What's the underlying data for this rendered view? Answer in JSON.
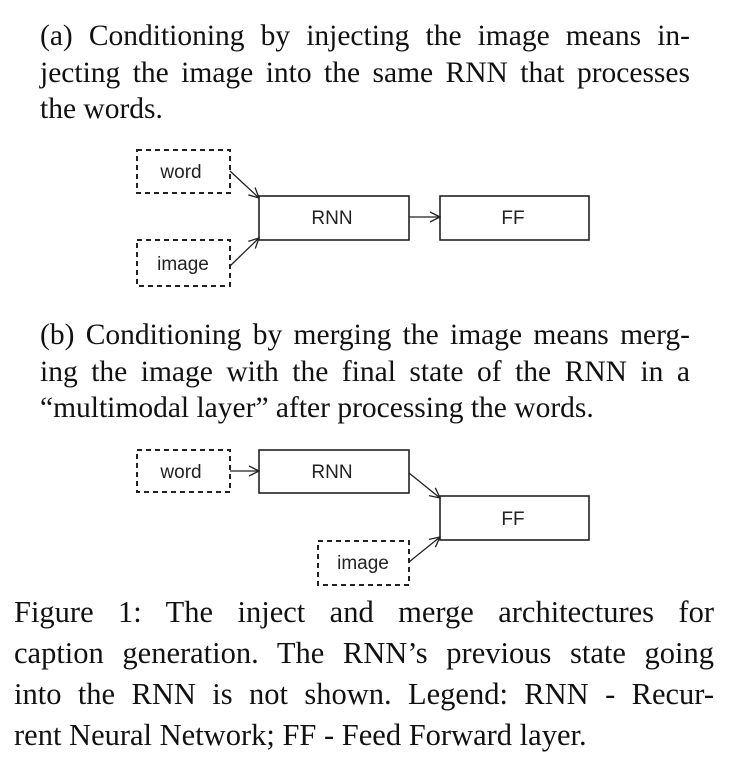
{
  "paragraph_a": {
    "lines": [
      "(a)  Conditioning by injecting the image means in-",
      "jecting the image into the same RNN that processes",
      "the words."
    ]
  },
  "diagram_a": {
    "nodes": {
      "word": "word",
      "image": "image",
      "rnn": "RNN",
      "ff": "FF"
    }
  },
  "paragraph_b": {
    "lines": [
      "(b)  Conditioning by merging the image means merg-",
      "ing the image with the final state of the RNN in a",
      "“multimodal layer” after processing the words."
    ]
  },
  "diagram_b": {
    "nodes": {
      "word": "word",
      "image": "image",
      "rnn": "RNN",
      "ff": "FF"
    }
  },
  "caption": {
    "lines": [
      "Figure 1:   The inject and merge architectures for",
      "caption generation. The RNN’s previous state going",
      "into the RNN is not shown. Legend: RNN - Recur-",
      "rent Neural Network; FF - Feed Forward layer."
    ]
  }
}
